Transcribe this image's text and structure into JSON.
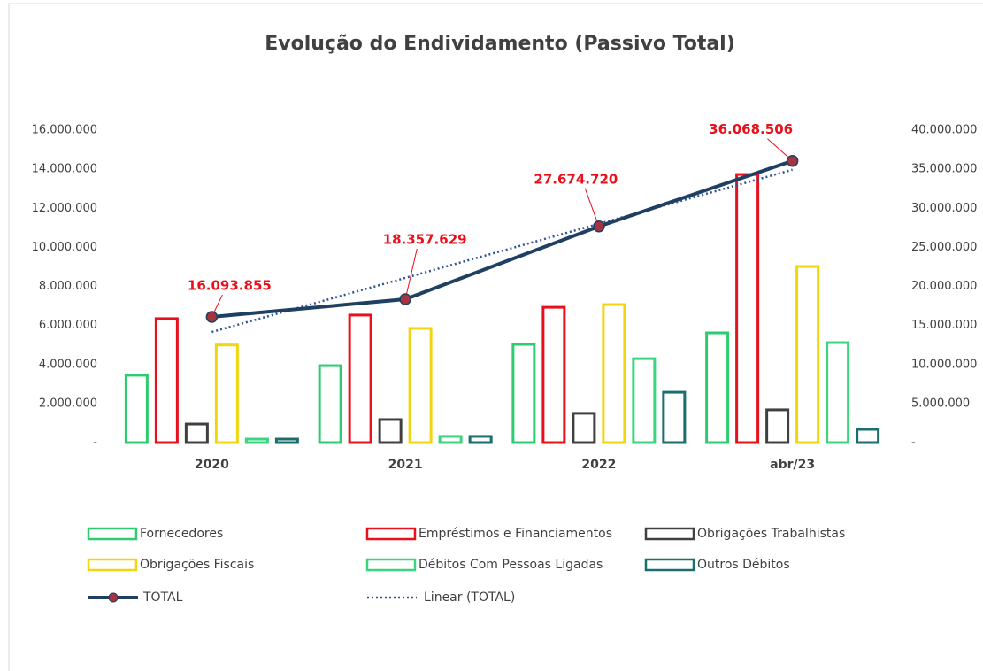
{
  "chart_data": {
    "type": "bar",
    "title": "Evolução do Endividamento (Passivo Total)",
    "categories": [
      "2020",
      "2021",
      "2022",
      "abr/23"
    ],
    "series": [
      {
        "name": "Fornecedores",
        "color": "#2ecc71",
        "values": [
          3450000,
          3940000,
          5030000,
          5620000
        ]
      },
      {
        "name": "Empréstimos e Financiamentos",
        "color": "#e8101a",
        "values": [
          6350000,
          6530000,
          6930000,
          13730000
        ]
      },
      {
        "name": "Obrigações Trabalhistas",
        "color": "#404040",
        "values": [
          950000,
          1180000,
          1500000,
          1680000
        ]
      },
      {
        "name": "Obrigações Fiscais",
        "color": "#f2d50f",
        "values": [
          5000000,
          5850000,
          7070000,
          9020000
        ]
      },
      {
        "name": "Débitos Com Pessoas Ligadas",
        "color": "#3ad57e",
        "values": [
          180000,
          320000,
          4300000,
          5120000
        ]
      },
      {
        "name": "Outros Débitos",
        "color": "#1a6e6e",
        "values": [
          180000,
          320000,
          2580000,
          680000
        ]
      },
      {
        "name": "TOTAL",
        "type": "line",
        "axis": "y2",
        "color": "#1f3f63",
        "marker_color": "#a33540",
        "values": [
          16093855,
          18357629,
          27674720,
          36068506
        ],
        "value_labels": [
          "16.093.855",
          "18.357.629",
          "27.674.720",
          "36.068.506"
        ]
      }
    ],
    "trendline": {
      "name": "Linear (TOTAL)",
      "of": "TOTAL",
      "color": "#2f5597",
      "style": "dotted"
    },
    "ylim": [
      0,
      16000000
    ],
    "yticks": [
      {
        "value": 0,
        "label": "-"
      },
      {
        "value": 2000000,
        "label": "2.000.000"
      },
      {
        "value": 4000000,
        "label": "4.000.000"
      },
      {
        "value": 6000000,
        "label": "6.000.000"
      },
      {
        "value": 8000000,
        "label": "8.000.000"
      },
      {
        "value": 10000000,
        "label": "10.000.000"
      },
      {
        "value": 12000000,
        "label": "12.000.000"
      },
      {
        "value": 14000000,
        "label": "14.000.000"
      },
      {
        "value": 16000000,
        "label": "16.000.000"
      }
    ],
    "y2lim": [
      0,
      40000000
    ],
    "y2ticks": [
      {
        "value": 0,
        "label": "-"
      },
      {
        "value": 5000000,
        "label": "5.000.000"
      },
      {
        "value": 10000000,
        "label": "10.000.000"
      },
      {
        "value": 15000000,
        "label": "15.000.000"
      },
      {
        "value": 20000000,
        "label": "20.000.000"
      },
      {
        "value": 25000000,
        "label": "25.000.000"
      },
      {
        "value": 30000000,
        "label": "30.000.000"
      },
      {
        "value": 35000000,
        "label": "35.000.000"
      },
      {
        "value": 40000000,
        "label": "40.000.000"
      }
    ],
    "grid": false,
    "legend": "bottom"
  }
}
